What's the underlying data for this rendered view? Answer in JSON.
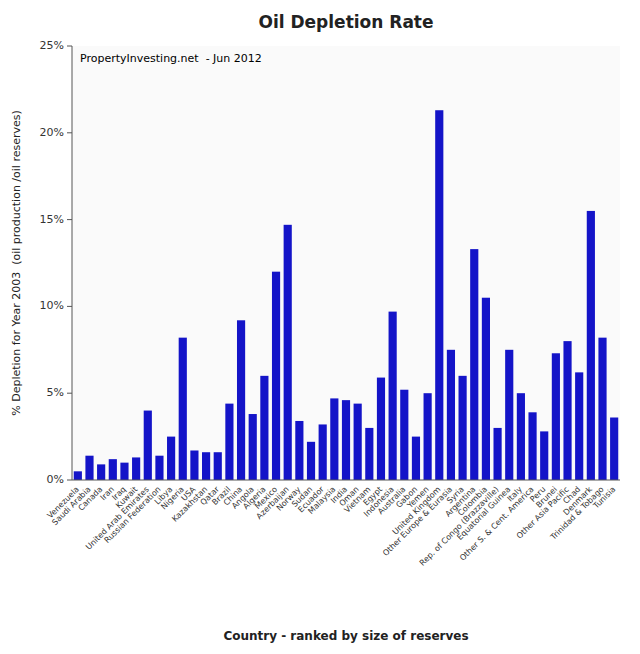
{
  "chart_data": {
    "type": "bar",
    "title": "Oil Depletion Rate",
    "xlabel": "Country - ranked by size of reserves",
    "ylabel": "% Depletion for Year 2003  (oil production /oil reserves)",
    "annotations": [
      "PropertyInvesting.net  - Jun 2012"
    ],
    "color": "#1414c8",
    "grid": false,
    "ylim": [
      0,
      0.25
    ],
    "yticks": [
      {
        "value": 0,
        "label": "0%"
      },
      {
        "value": 0.05,
        "label": "5%"
      },
      {
        "value": 0.1,
        "label": "10%"
      },
      {
        "value": 0.15,
        "label": "15%"
      },
      {
        "value": 0.2,
        "label": "20%"
      },
      {
        "value": 0.25,
        "label": "25%"
      }
    ],
    "categories": [
      "Venezuela",
      "Saudi Arabia",
      "Canada",
      "Iran",
      "Iraq",
      "Kuwait",
      "United Arab Emirates",
      "Russian Federation",
      "Libya",
      "Nigeria",
      "USA",
      "Kazakhstan",
      "Qatar",
      "Brazil",
      "China",
      "Angola",
      "Algeria",
      "Mexico",
      "Azerbaijan",
      "Norway",
      "Sudan",
      "Ecuador",
      "Malaysia",
      "India",
      "Oman",
      "Vietnam",
      "Egypt",
      "Indonesia",
      "Australia",
      "Gabon",
      "Yemen",
      "United Kingdom",
      "Other Europe & Eurasia",
      "Syria",
      "Argentina",
      "Colombia",
      "Rep. of Congo (Brazzaville)",
      "Equatorial Guinea",
      "Italy",
      "Other S. & Cent. America",
      "Peru",
      "Brunei",
      "Other Asia Pacific",
      "Chad",
      "Denmark",
      "Trinidad & Tobago",
      "Tunisia"
    ],
    "values": [
      0.005,
      0.014,
      0.009,
      0.012,
      0.01,
      0.013,
      0.04,
      0.014,
      0.025,
      0.082,
      0.017,
      0.016,
      0.016,
      0.044,
      0.092,
      0.038,
      0.06,
      0.12,
      0.147,
      0.034,
      0.022,
      0.032,
      0.047,
      0.046,
      0.044,
      0.03,
      0.059,
      0.097,
      0.052,
      0.025,
      0.05,
      0.213,
      0.075,
      0.06,
      0.133,
      0.105,
      0.03,
      0.075,
      0.05,
      0.039,
      0.028,
      0.073,
      0.08,
      0.062,
      0.155,
      0.082,
      0.036
    ]
  }
}
